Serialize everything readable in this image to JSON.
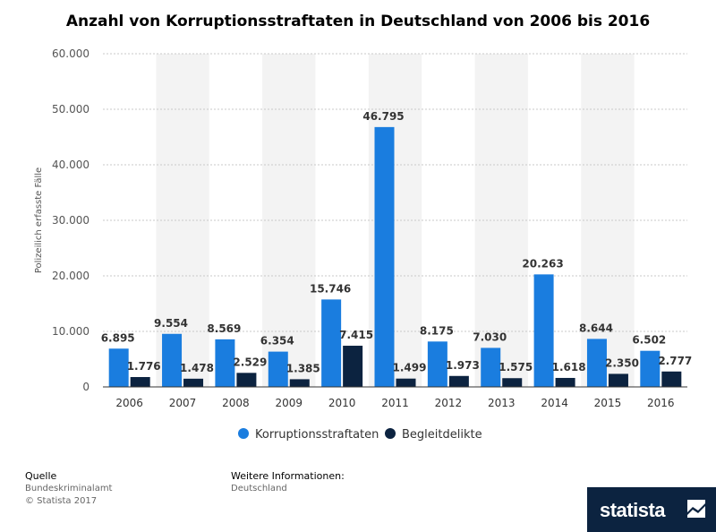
{
  "chart_data": {
    "type": "bar",
    "title": "Anzahl von Korruptionsstraftaten in Deutschland von 2006 bis 2016",
    "xlabel": "",
    "ylabel": "Polizeilich erfasste Fälle",
    "ylim": [
      0,
      60000
    ],
    "yticks": [
      0,
      10000,
      20000,
      30000,
      40000,
      50000,
      60000
    ],
    "ytick_labels": [
      "0",
      "10.000",
      "20.000",
      "30.000",
      "40.000",
      "50.000",
      "60.000"
    ],
    "categories": [
      "2006",
      "2007",
      "2008",
      "2009",
      "2010",
      "2011",
      "2012",
      "2013",
      "2014",
      "2015",
      "2016"
    ],
    "series": [
      {
        "name": "Korruptionsstraftaten",
        "color": "#1a7ddf",
        "values": [
          6895,
          9554,
          8569,
          6354,
          15746,
          46795,
          8175,
          7030,
          20263,
          8644,
          6502
        ],
        "labels": [
          "6.895",
          "9.554",
          "8.569",
          "6.354",
          "15.746",
          "46.795",
          "8.175",
          "7.030",
          "20.263",
          "8.644",
          "6.502"
        ]
      },
      {
        "name": "Begleitdelikte",
        "color": "#0c2340",
        "values": [
          1776,
          1478,
          2529,
          1385,
          7415,
          1499,
          1973,
          1575,
          1618,
          2350,
          2777
        ],
        "labels": [
          "1.776",
          "1.478",
          "2.529",
          "1.385",
          "7.415",
          "1.499",
          "1.973",
          "1.575",
          "1.618",
          "2.350",
          "2.777"
        ]
      }
    ],
    "legend": "bottom",
    "grid": true
  },
  "footer": {
    "source_heading": "Quelle",
    "source": "Bundeskriminalamt",
    "copyright": "© Statista 2017",
    "info_heading": "Weitere Informationen:",
    "info": "Deutschland"
  },
  "logo": {
    "text": "statista"
  }
}
